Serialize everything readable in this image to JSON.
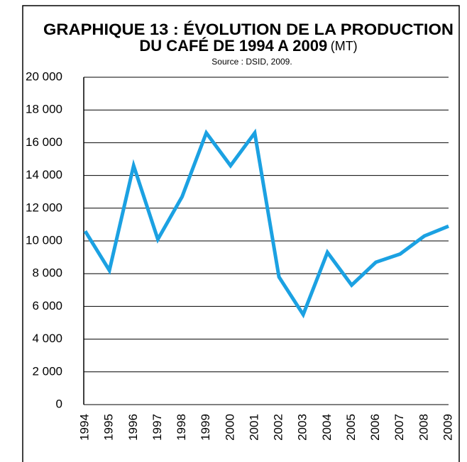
{
  "chart_data": {
    "type": "line",
    "title_lines": [
      "GRAPHIQUE 13 : ÉVOLUTION DE LA PRODUCTION",
      "DU CAFÉ DE 1994 A 2009"
    ],
    "unit": "(MT)",
    "source": "Source : DSID, 2009.",
    "categories": [
      "1994",
      "1995",
      "1996",
      "1997",
      "1998",
      "1999",
      "2000",
      "2001",
      "2002",
      "2003",
      "2004",
      "2005",
      "2006",
      "2007",
      "2008",
      "2009"
    ],
    "values": [
      10600,
      8200,
      14600,
      10100,
      12700,
      16600,
      14600,
      16600,
      7800,
      5500,
      9300,
      7300,
      8700,
      9200,
      10300,
      10900
    ],
    "color": "#1ba1e2",
    "ylim": [
      0,
      20000
    ],
    "yticks": [
      0,
      {
        "value": 2000,
        "label": "2 000"
      },
      {
        "value": 4000,
        "label": "4 000"
      },
      {
        "value": 6000,
        "label": "6 000"
      },
      {
        "value": 8000,
        "label": "8 000"
      },
      {
        "value": 10000,
        "label": "10 000"
      },
      {
        "value": 12000,
        "label": "12 000"
      },
      {
        "value": 14000,
        "label": "14 000"
      },
      {
        "value": 16000,
        "label": "16 000"
      },
      {
        "value": 18000,
        "label": "18 000"
      },
      {
        "value": 20000,
        "label": "20 000"
      }
    ],
    "grid": true
  }
}
